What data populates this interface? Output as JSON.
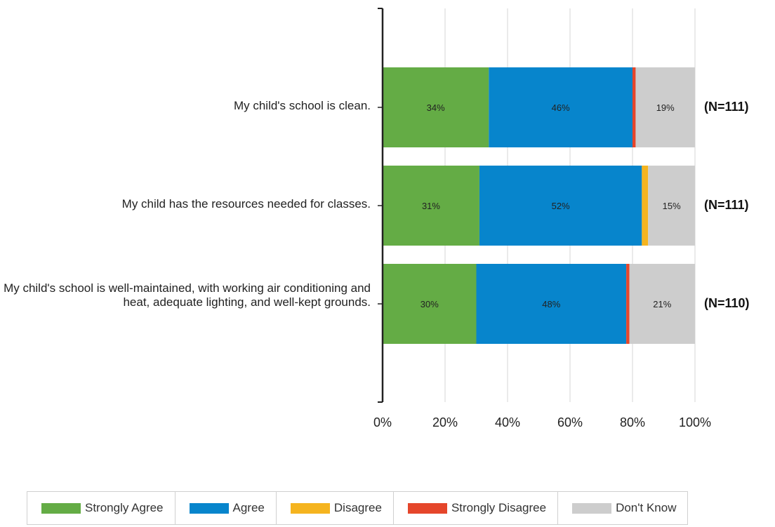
{
  "chart_data": {
    "type": "bar",
    "orientation": "horizontal",
    "stacked": true,
    "categories": [
      "My child's school is clean.",
      "My child has the resources needed for classes.",
      "My child's school is well-maintained, with working air conditioning and heat, adequate lighting, and well-kept grounds."
    ],
    "n_labels": [
      "(N=111)",
      "(N=111)",
      "(N=110)"
    ],
    "series": [
      {
        "name": "Strongly Agree",
        "color": "#64ac45",
        "values": [
          34,
          31,
          30
        ],
        "labels": [
          "34%",
          "31%",
          "30%"
        ]
      },
      {
        "name": "Agree",
        "color": "#0785cc",
        "values": [
          46,
          52,
          48
        ],
        "labels": [
          "46%",
          "52%",
          "48%"
        ]
      },
      {
        "name": "Disagree",
        "color": "#f5b41f",
        "values": [
          0,
          2,
          0
        ],
        "labels": [
          "",
          "",
          ""
        ]
      },
      {
        "name": "Strongly Disagree",
        "color": "#e5462b",
        "values": [
          1,
          0,
          1
        ],
        "labels": [
          "",
          "",
          ""
        ]
      },
      {
        "name": "Don't Know",
        "color": "#cdcdcd",
        "values": [
          19,
          15,
          21
        ],
        "labels": [
          "19%",
          "15%",
          "21%"
        ]
      }
    ],
    "xlim": [
      0,
      100
    ],
    "xticks": [
      "0%",
      "20%",
      "40%",
      "60%",
      "80%",
      "100%"
    ],
    "grid": true,
    "legend_position": "bottom"
  }
}
